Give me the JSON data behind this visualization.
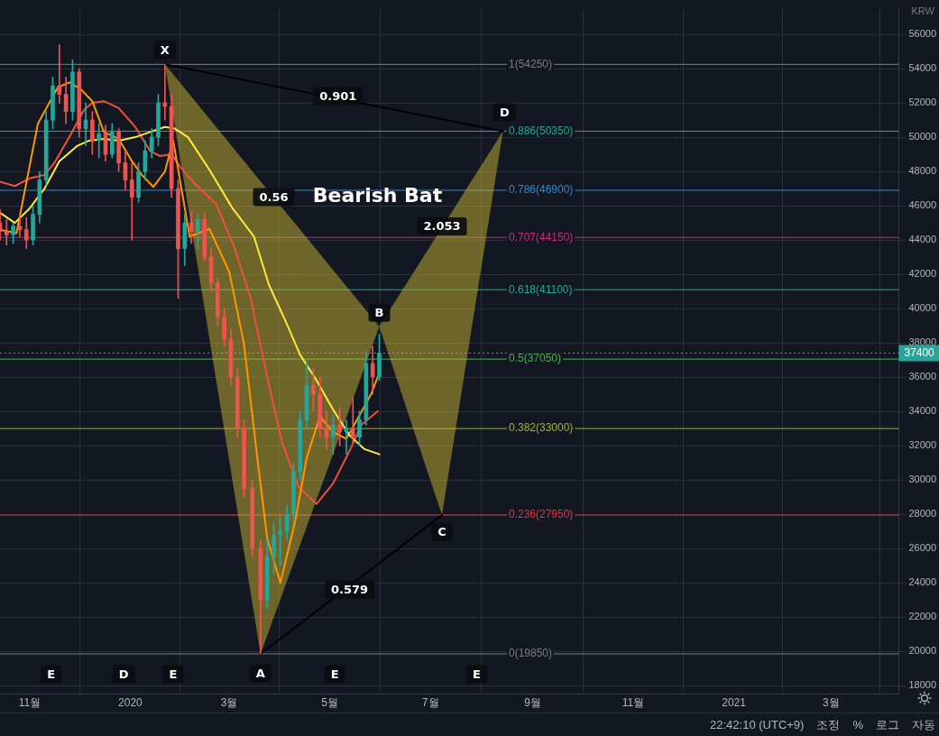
{
  "chart_data": {
    "type": "candlestick",
    "title": "Bearish Bat",
    "ylabel": "KRW",
    "x": [
      "2019-10-14",
      "2019-10-18",
      "2019-10-22",
      "2019-10-26",
      "2019-10-30",
      "2019-11-03",
      "2019-11-07",
      "2019-11-11",
      "2019-11-15",
      "2019-11-19",
      "2019-11-23",
      "2019-11-27",
      "2019-12-01",
      "2019-12-05",
      "2019-12-09",
      "2019-12-13",
      "2019-12-17",
      "2019-12-21",
      "2019-12-25",
      "2019-12-29",
      "2020-01-02",
      "2020-01-06",
      "2020-01-10",
      "2020-01-14",
      "2020-01-18",
      "2020-01-22",
      "2020-01-26",
      "2020-01-30",
      "2020-02-03",
      "2020-02-07",
      "2020-02-11",
      "2020-02-15",
      "2020-02-19",
      "2020-02-23",
      "2020-02-27",
      "2020-03-02",
      "2020-03-06",
      "2020-03-10",
      "2020-03-15",
      "2020-03-20",
      "2020-03-24",
      "2020-03-28",
      "2020-04-01",
      "2020-04-05",
      "2020-04-09",
      "2020-04-13",
      "2020-04-17",
      "2020-04-21",
      "2020-04-25",
      "2020-04-29",
      "2020-05-03",
      "2020-05-07",
      "2020-05-11",
      "2020-05-15",
      "2020-05-19",
      "2020-05-23",
      "2020-05-27",
      "2020-05-31"
    ],
    "ohlc": [
      [
        45000,
        45800,
        44000,
        44500
      ],
      [
        44500,
        45200,
        43700,
        44300
      ],
      [
        44300,
        45000,
        43800,
        44800
      ],
      [
        44800,
        45500,
        44200,
        44600
      ],
      [
        44600,
        45300,
        43500,
        44000
      ],
      [
        44000,
        46000,
        43700,
        45500
      ],
      [
        45500,
        48000,
        45000,
        47500
      ],
      [
        47500,
        51500,
        47200,
        51000
      ],
      [
        51000,
        53500,
        50500,
        53000
      ],
      [
        53000,
        55400,
        52000,
        52500
      ],
      [
        52500,
        53500,
        50800,
        51500
      ],
      [
        51500,
        54500,
        51000,
        53800
      ],
      [
        53800,
        54000,
        50000,
        50500
      ],
      [
        50500,
        52000,
        49500,
        51000
      ],
      [
        51000,
        51500,
        49000,
        49800
      ],
      [
        49800,
        50800,
        48800,
        50200
      ],
      [
        50200,
        50700,
        48600,
        49000
      ],
      [
        49000,
        50800,
        48800,
        50300
      ],
      [
        50300,
        50500,
        48000,
        48500
      ],
      [
        48500,
        49200,
        46900,
        47500
      ],
      [
        47500,
        48500,
        44000,
        46500
      ],
      [
        46500,
        48500,
        46200,
        48000
      ],
      [
        48000,
        49800,
        47500,
        49200
      ],
      [
        49200,
        50500,
        48800,
        50000
      ],
      [
        50000,
        52500,
        49500,
        52000
      ],
      [
        52000,
        54250,
        51000,
        51800
      ],
      [
        51800,
        52500,
        46500,
        47000
      ],
      [
        47000,
        47500,
        40600,
        43500
      ],
      [
        43500,
        45500,
        42500,
        45000
      ],
      [
        45000,
        45700,
        43800,
        44500
      ],
      [
        44500,
        45500,
        43500,
        45200
      ],
      [
        45200,
        45600,
        42800,
        43000
      ],
      [
        43000,
        43500,
        41000,
        41500
      ],
      [
        41500,
        41800,
        39000,
        39500
      ],
      [
        39500,
        40000,
        37800,
        38200
      ],
      [
        38200,
        38800,
        35500,
        36000
      ],
      [
        36000,
        36500,
        32500,
        33000
      ],
      [
        33000,
        33500,
        29000,
        29500
      ],
      [
        29500,
        30000,
        25500,
        26000
      ],
      [
        26000,
        26500,
        19850,
        23000
      ],
      [
        23000,
        26500,
        22500,
        25500
      ],
      [
        25500,
        27500,
        24500,
        26800
      ],
      [
        26800,
        27800,
        25000,
        27000
      ],
      [
        27000,
        28500,
        26500,
        28000
      ],
      [
        28000,
        31000,
        27500,
        30500
      ],
      [
        30500,
        34000,
        30000,
        33500
      ],
      [
        33500,
        37000,
        33000,
        35500
      ],
      [
        35500,
        36500,
        34000,
        35000
      ],
      [
        35000,
        36000,
        32500,
        33000
      ],
      [
        33000,
        34000,
        31800,
        32500
      ],
      [
        32500,
        33800,
        31500,
        33200
      ],
      [
        33200,
        34200,
        32000,
        32800
      ],
      [
        32800,
        33500,
        31500,
        33000
      ],
      [
        33000,
        34800,
        32200,
        32500
      ],
      [
        32500,
        34000,
        32000,
        33500
      ],
      [
        33500,
        37500,
        33200,
        36800
      ],
      [
        36800,
        37800,
        35000,
        36000
      ],
      [
        36000,
        38500,
        35800,
        37400
      ]
    ],
    "series": [
      {
        "type": "area",
        "color": "#c8b432",
        "x": [
          "2020-01-22",
          "2020-03-20",
          "2020-05-31",
          "2020-01-22"
        ],
        "values": [
          54250,
          19850,
          38950,
          54250
        ]
      },
      {
        "type": "area",
        "color": "#c8b432",
        "x": [
          "2020-05-31",
          "2020-07-08",
          "2020-08-14",
          "2020-05-31"
        ],
        "values": [
          38950,
          27950,
          50350,
          38950
        ]
      },
      {
        "type": "line",
        "color": "#000000",
        "x": [
          "2020-01-22",
          "2020-08-14"
        ],
        "values": [
          54250,
          50350
        ]
      },
      {
        "type": "line",
        "color": "#000000",
        "x": [
          "2020-03-20",
          "2020-07-08"
        ],
        "values": [
          19850,
          27950
        ]
      },
      {
        "type": "line",
        "color": "#f0513b",
        "x": [
          "2019-10-14",
          "2019-10-23",
          "2019-11-01",
          "2019-11-10",
          "2019-11-16",
          "2019-11-25",
          "2019-12-04",
          "2019-12-09",
          "2019-12-16",
          "2019-12-25",
          "2020-01-04",
          "2020-01-13",
          "2020-01-19",
          "2020-01-26",
          "2020-01-31",
          "2020-02-08",
          "2020-02-22",
          "2020-03-04",
          "2020-03-14",
          "2020-03-24",
          "2020-04-02",
          "2020-04-12",
          "2020-04-23",
          "2020-05-03",
          "2020-05-13",
          "2020-05-20",
          "2020-05-30"
        ],
        "values": [
          47400,
          47150,
          47600,
          47800,
          48500,
          50000,
          51600,
          52000,
          52100,
          51700,
          50600,
          49200,
          48900,
          49000,
          48300,
          47400,
          46100,
          43600,
          40600,
          36000,
          32200,
          29600,
          28600,
          29800,
          31700,
          33200,
          34000
        ]
      },
      {
        "type": "line",
        "color": "#ff9800",
        "x": [
          "2019-10-14",
          "2019-10-24",
          "2019-11-06",
          "2019-11-18",
          "2019-11-25",
          "2019-12-02",
          "2019-12-09",
          "2019-12-16",
          "2019-12-25",
          "2020-01-02",
          "2020-01-08",
          "2020-01-15",
          "2020-01-22",
          "2020-01-27",
          "2020-02-06",
          "2020-02-18",
          "2020-03-01",
          "2020-03-10",
          "2020-03-18",
          "2020-03-24",
          "2020-04-01",
          "2020-04-10",
          "2020-04-17",
          "2020-04-25",
          "2020-05-03",
          "2020-05-11",
          "2020-05-18",
          "2020-05-26",
          "2020-05-30"
        ],
        "values": [
          44600,
          44400,
          50800,
          52900,
          53200,
          52800,
          52100,
          50300,
          49900,
          48600,
          47800,
          47100,
          48000,
          49800,
          44200,
          44650,
          42150,
          37900,
          31300,
          26600,
          24000,
          27600,
          31300,
          33700,
          32800,
          32400,
          33600,
          35000,
          36000
        ]
      },
      {
        "type": "line",
        "color": "#ffeb3b",
        "x": [
          "2019-10-14",
          "2019-10-23",
          "2019-11-01",
          "2019-11-10",
          "2019-11-19",
          "2019-11-30",
          "2019-12-07",
          "2019-12-16",
          "2019-12-25",
          "2020-01-04",
          "2020-01-13",
          "2020-01-22",
          "2020-01-28",
          "2020-02-05",
          "2020-02-18",
          "2020-03-03",
          "2020-03-16",
          "2020-03-25",
          "2020-04-04",
          "2020-04-13",
          "2020-04-23",
          "2020-05-03",
          "2020-05-13",
          "2020-05-22",
          "2020-05-31"
        ],
        "values": [
          45600,
          45000,
          45850,
          47000,
          48600,
          49500,
          49800,
          49900,
          49800,
          50000,
          50300,
          50600,
          50500,
          50000,
          48100,
          45850,
          44200,
          41400,
          39300,
          37300,
          35800,
          34100,
          32600,
          31800,
          31500
        ]
      }
    ],
    "xlim": [
      "2019-10-14",
      "2021-04-11"
    ],
    "xticks": [
      {
        "value": "2019-11-01",
        "label": "11월"
      },
      {
        "value": "2020-01-01",
        "label": "2020"
      },
      {
        "value": "2020-03-01",
        "label": "3월"
      },
      {
        "value": "2020-05-01",
        "label": "5월"
      },
      {
        "value": "2020-07-01",
        "label": "7월"
      },
      {
        "value": "2020-09-01",
        "label": "9월"
      },
      {
        "value": "2020-11-01",
        "label": "11월"
      },
      {
        "value": "2021-01-01",
        "label": "2021"
      },
      {
        "value": "2021-03-01",
        "label": "3월"
      }
    ],
    "ylim": [
      17500,
      57500
    ],
    "yticks": [
      18000,
      20000,
      22000,
      24000,
      26000,
      28000,
      30000,
      32000,
      34000,
      36000,
      38000,
      40000,
      42000,
      44000,
      46000,
      48000,
      50000,
      52000,
      54000,
      56000
    ],
    "grid": true,
    "legend": false,
    "ref_lines": [
      {
        "axis": "y",
        "value": 54250,
        "label": "1(54250)",
        "color": "#787b86"
      },
      {
        "axis": "y",
        "value": 50350,
        "label": "0.886(50350)",
        "color": "#22ab94"
      },
      {
        "axis": "y",
        "value": 46900,
        "label": "0.786(46900)",
        "color": "#2f88d0"
      },
      {
        "axis": "y",
        "value": 44150,
        "label": "0.707(44150)",
        "color": "#d02a7a"
      },
      {
        "axis": "y",
        "value": 41100,
        "label": "0.618(41100)",
        "color": "#22ab94"
      },
      {
        "axis": "y",
        "value": 37050,
        "label": "0.5(37050)",
        "color": "#4caf50"
      },
      {
        "axis": "y",
        "value": 33000,
        "label": "0.382(33000)",
        "color": "#9fb81e"
      },
      {
        "axis": "y",
        "value": 27950,
        "label": "0.236(27950)",
        "color": "#e0383e"
      },
      {
        "axis": "y",
        "value": 19850,
        "label": "0(19850)",
        "color": "#787b86"
      },
      {
        "axis": "y",
        "value": 37400,
        "label": "37400",
        "color": "#26a69a",
        "line_style": "dotted"
      }
    ],
    "annotations": [
      {
        "text": "X",
        "x": "2020-01-22",
        "y": 55100
      },
      {
        "text": "A",
        "x": "2020-03-20",
        "y": 18700
      },
      {
        "text": "B",
        "x": "2020-05-31",
        "y": 39750
      },
      {
        "text": "C",
        "x": "2020-07-08",
        "y": 26950
      },
      {
        "text": "D",
        "x": "2020-08-15",
        "y": 51450
      },
      {
        "text": "0.901",
        "x": "2020-05-06",
        "y": 52400
      },
      {
        "text": "0.56",
        "x": "2020-03-28",
        "y": 46500
      },
      {
        "text": "2.053",
        "x": "2020-07-08",
        "y": 44800
      },
      {
        "text": "0.579",
        "x": "2020-05-13",
        "y": 23600
      },
      {
        "text": "E",
        "x": "2019-11-14",
        "y": 18660
      },
      {
        "text": "D",
        "x": "2019-12-28",
        "y": 18660
      },
      {
        "text": "E",
        "x": "2020-01-27",
        "y": 18660
      },
      {
        "text": "E",
        "x": "2020-05-04",
        "y": 18660
      },
      {
        "text": "E",
        "x": "2020-07-29",
        "y": 18660
      },
      "22:42:10 (UTC+9)",
      "조정",
      "%",
      "로그",
      "자동"
    ]
  }
}
